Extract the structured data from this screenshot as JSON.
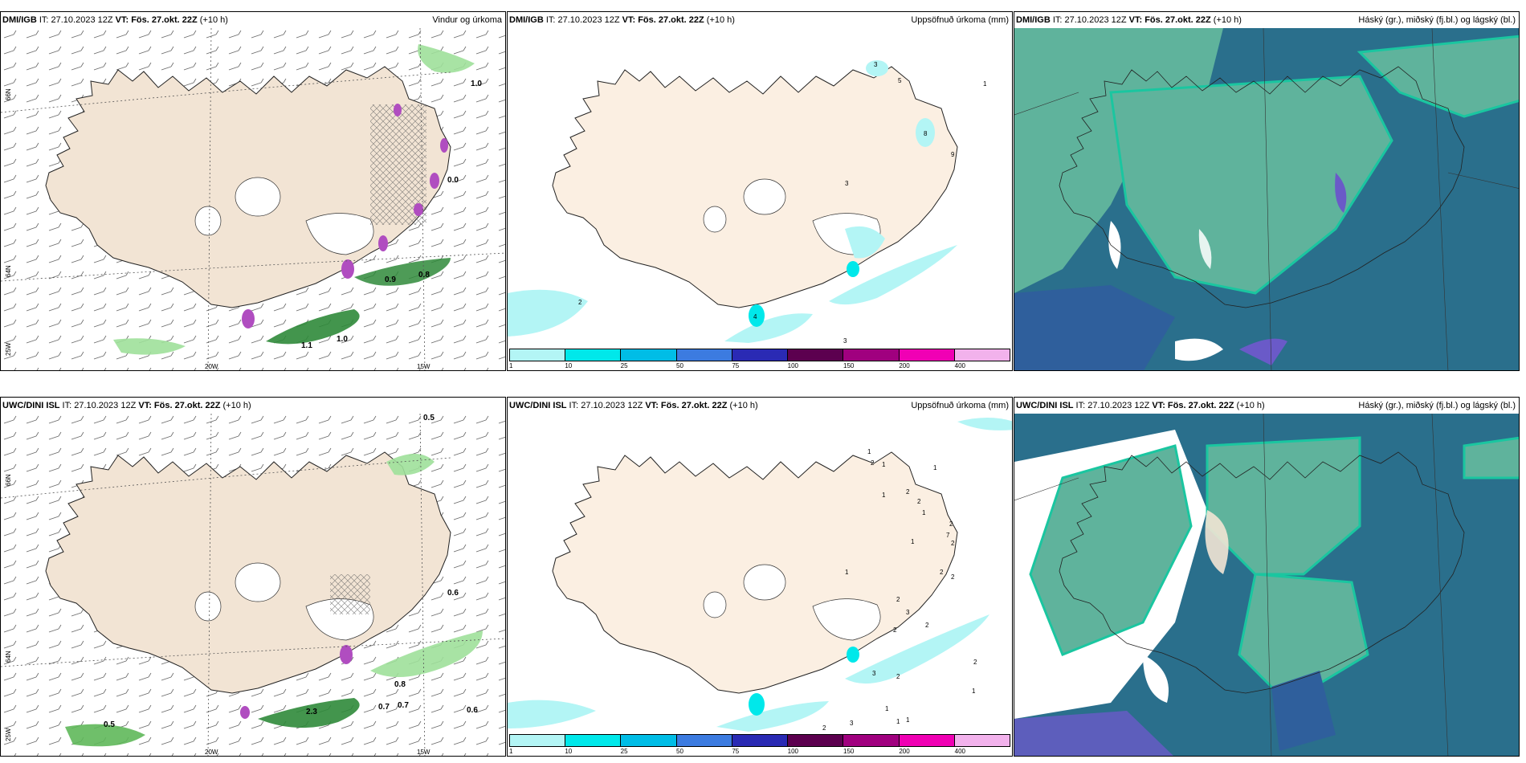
{
  "panels": [
    {
      "src": "DMI/IGB",
      "it": " IT: 27.10.2023 12Z ",
      "vt": "VT: Fös. 27.okt. 22Z",
      "lead": " (+10 h)",
      "title": "Vindur og úrkoma"
    },
    {
      "src": "DMI/IGB",
      "it": " IT: 27.10.2023 12Z ",
      "vt": "VT: Fös. 27.okt. 22Z",
      "lead": " (+10 h)",
      "title": "Uppsöfnuð úrkoma (mm)"
    },
    {
      "src": "DMI/IGB",
      "it": " IT: 27.10.2023 12Z ",
      "vt": "VT: Fös. 27.okt. 22Z",
      "lead": " (+10 h)",
      "title": "Háský (gr.), miðský (fj.bl.) og lágský (bl.)"
    },
    {
      "src": "UWC/DINI ISL",
      "it": " IT: 27.10.2023 12Z ",
      "vt": "VT: Fös. 27.okt. 22Z",
      "lead": " (+10 h)",
      "title": ""
    },
    {
      "src": "UWC/DINI ISL",
      "it": " IT: 27.10.2023 12Z ",
      "vt": "VT: Fös. 27.okt. 22Z",
      "lead": " (+10 h)",
      "title": "Uppsöfnuð úrkoma (mm)"
    },
    {
      "src": "UWC/DINI ISL",
      "it": " IT: 27.10.2023 12Z ",
      "vt": "VT: Fös. 27.okt. 22Z",
      "lead": " (+10 h)",
      "title": "Háský (gr.), miðský (fj.bl.) og lágský (bl.)"
    }
  ],
  "grid_labels": {
    "lat66": "66N",
    "lat64": "64N",
    "lon25": "25W",
    "lon20": "20W",
    "lon15": "15W"
  },
  "colorbar": {
    "labels": [
      "1",
      "10",
      "25",
      "50",
      "75",
      "100",
      "150",
      "200",
      "400"
    ],
    "colors": [
      "#b3f5f5",
      "#00e8ea",
      "#00bde6",
      "#3c7be0",
      "#2a2ab4",
      "#5c004f",
      "#a0007f",
      "#f000b4",
      "#f2b2ec"
    ]
  },
  "wind_panel_values_top": [
    "1.0",
    "0.9",
    "0.8",
    "1.1",
    "1.0",
    "0.0"
  ],
  "wind_panel_values_bottom": [
    "0.5",
    "0.6",
    "0.8",
    "0.7",
    "0.7",
    "2.3",
    "0.5",
    "0.6"
  ],
  "precip_values_top": [
    "3",
    "5",
    "1",
    "8",
    "9",
    "3",
    "2",
    "3",
    "4"
  ],
  "precip_values_bottom": [
    "1",
    "2",
    "1",
    "1",
    "2",
    "1",
    "1",
    "2",
    "2",
    "7",
    "2",
    "1",
    "2",
    "2",
    "1",
    "2",
    "3",
    "2",
    "2",
    "2",
    "3",
    "2",
    "1",
    "1",
    "1",
    "1",
    "2",
    "3"
  ],
  "colors": {
    "land": "#f2e4d4",
    "land_precip": "#fbefe2",
    "cloud_low": "#2a6f8c",
    "cloud_mid": "#5fb39c",
    "cloud_high": "#1ac6a0",
    "cloud_white": "#ffffff",
    "cloud_purple": "#6a5ac8"
  }
}
